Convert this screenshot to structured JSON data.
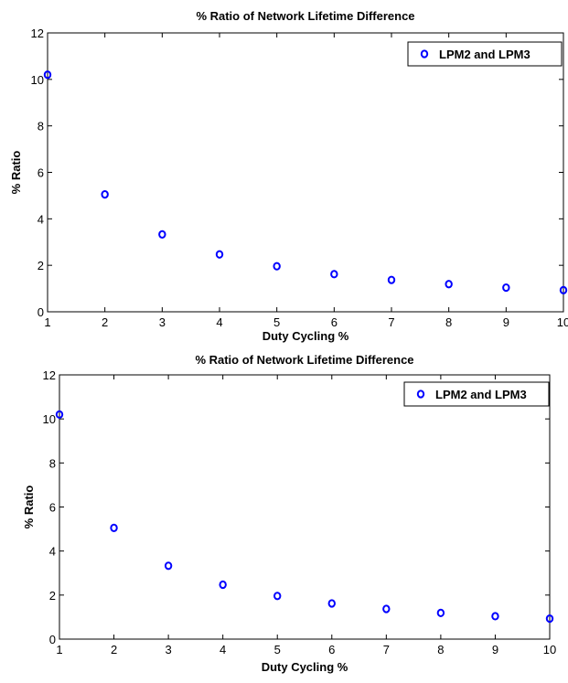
{
  "chart_data": [
    {
      "type": "scatter",
      "title": "% Ratio of Network Lifetime Difference",
      "xlabel": "Duty Cycling %",
      "ylabel": "% Ratio",
      "xlim": [
        1,
        10
      ],
      "ylim": [
        0,
        12
      ],
      "xticks": [
        "1",
        "2",
        "3",
        "4",
        "5",
        "6",
        "7",
        "8",
        "9",
        "10"
      ],
      "yticks": [
        "0",
        "2",
        "4",
        "6",
        "8",
        "10",
        "12"
      ],
      "grid": false,
      "legend_position": "top-right",
      "series": [
        {
          "name": "LPM2 and LPM3",
          "color": "#0000ff",
          "marker": "circle",
          "x": [
            1,
            2,
            3,
            4,
            5,
            6,
            7,
            8,
            9,
            10
          ],
          "y": [
            10.2,
            5.05,
            3.33,
            2.47,
            1.96,
            1.62,
            1.37,
            1.19,
            1.04,
            0.93
          ]
        }
      ]
    },
    {
      "type": "scatter",
      "title": "% Ratio of Network Lifetime Difference",
      "xlabel": "Duty Cycling %",
      "ylabel": "% Ratio",
      "xlim": [
        1,
        10
      ],
      "ylim": [
        0,
        12
      ],
      "xticks": [
        "1",
        "2",
        "3",
        "4",
        "5",
        "6",
        "7",
        "8",
        "9",
        "10"
      ],
      "yticks": [
        "0",
        "2",
        "4",
        "6",
        "8",
        "10",
        "12"
      ],
      "grid": false,
      "legend_position": "top-right",
      "series": [
        {
          "name": "LPM2 and LPM3",
          "color": "#0000ff",
          "marker": "circle",
          "x": [
            1,
            2,
            3,
            4,
            5,
            6,
            7,
            8,
            9,
            10
          ],
          "y": [
            10.2,
            5.05,
            3.33,
            2.47,
            1.96,
            1.62,
            1.37,
            1.19,
            1.04,
            0.93
          ]
        }
      ]
    }
  ]
}
